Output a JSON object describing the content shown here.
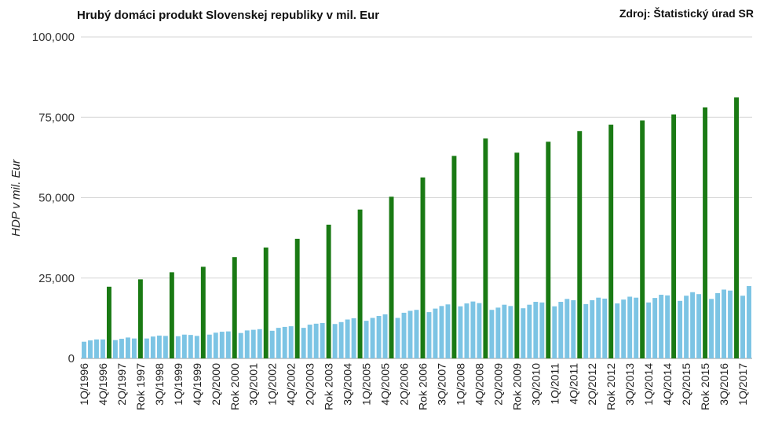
{
  "chart_data": {
    "type": "bar",
    "title": "Hrubý domáci produkt Slovenskej republiky v mil. Eur",
    "source": "Zdroj: Štatistický úrad SR",
    "ylabel": "HDP v mil. Eur",
    "xlabel": "",
    "ylim": [
      0,
      100000
    ],
    "yticks": [
      "0",
      "25,000",
      "50,000",
      "75,000",
      "100,000"
    ],
    "ytick_values": [
      0,
      25000,
      50000,
      75000,
      100000
    ],
    "grid": true,
    "legend": "none",
    "colors": {
      "quarter": "#7cc4e4",
      "year": "#1a7a14",
      "grid": "#d6d6d6"
    },
    "categories": [
      "1Q/1996",
      "2Q/1996",
      "3Q/1996",
      "4Q/1996",
      "Rok 1996",
      "1Q/1997",
      "2Q/1997",
      "3Q/1997",
      "4Q/1997",
      "Rok 1997",
      "1Q/1998",
      "2Q/1998",
      "3Q/1998",
      "4Q/1998",
      "Rok 1998",
      "1Q/1999",
      "2Q/1999",
      "3Q/1999",
      "4Q/1999",
      "Rok 1999",
      "1Q/2000",
      "2Q/2000",
      "3Q/2000",
      "4Q/2000",
      "Rok 2000",
      "1Q/2001",
      "2Q/2001",
      "3Q/2001",
      "4Q/2001",
      "Rok 2001",
      "1Q/2002",
      "2Q/2002",
      "3Q/2002",
      "4Q/2002",
      "Rok 2002",
      "1Q/2003",
      "2Q/2003",
      "3Q/2003",
      "4Q/2003",
      "Rok 2003",
      "1Q/2004",
      "2Q/2004",
      "3Q/2004",
      "4Q/2004",
      "Rok 2004",
      "1Q/2005",
      "2Q/2005",
      "3Q/2005",
      "4Q/2005",
      "Rok 2005",
      "1Q/2006",
      "2Q/2006",
      "3Q/2006",
      "4Q/2006",
      "Rok 2006",
      "1Q/2007",
      "2Q/2007",
      "3Q/2007",
      "4Q/2007",
      "Rok 2007",
      "1Q/2008",
      "2Q/2008",
      "3Q/2008",
      "4Q/2008",
      "Rok 2008",
      "1Q/2009",
      "2Q/2009",
      "3Q/2009",
      "4Q/2009",
      "Rok 2009",
      "1Q/2010",
      "2Q/2010",
      "3Q/2010",
      "4Q/2010",
      "Rok 2010",
      "1Q/2011",
      "2Q/2011",
      "3Q/2011",
      "4Q/2011",
      "Rok 2011",
      "1Q/2012",
      "2Q/2012",
      "3Q/2012",
      "4Q/2012",
      "Rok 2012",
      "1Q/2013",
      "2Q/2013",
      "3Q/2013",
      "4Q/2013",
      "Rok 2013",
      "1Q/2014",
      "2Q/2014",
      "3Q/2014",
      "4Q/2014",
      "Rok 2014",
      "1Q/2015",
      "2Q/2015",
      "3Q/2015",
      "4Q/2015",
      "Rok 2015",
      "1Q/2016",
      "2Q/2016",
      "3Q/2016",
      "4Q/2016",
      "Rok 2016",
      "1Q/2017",
      "2Q/2017"
    ],
    "x_tick_labels": [
      "1Q/1996",
      "4Q/1996",
      "2Q/1997",
      "Rok 1997",
      "3Q/1998",
      "1Q/1999",
      "4Q/1999",
      "2Q/2000",
      "Rok 2000",
      "3Q/2001",
      "1Q/2002",
      "4Q/2002",
      "2Q/2003",
      "Rok 2003",
      "3Q/2004",
      "1Q/2005",
      "4Q/2005",
      "2Q/2006",
      "Rok 2006",
      "3Q/2007",
      "1Q/2008",
      "4Q/2008",
      "2Q/2009",
      "Rok 2009",
      "3Q/2010",
      "1Q/2011",
      "4Q/2011",
      "2Q/2012",
      "Rok 2012",
      "3Q/2013",
      "1Q/2014",
      "4Q/2014",
      "2Q/2015",
      "Rok 2015",
      "3Q/2016",
      "1Q/2017"
    ],
    "values": [
      5200,
      5600,
      5900,
      5900,
      22300,
      5700,
      6100,
      6500,
      6200,
      24600,
      6200,
      6800,
      7100,
      7000,
      26800,
      6900,
      7400,
      7300,
      7000,
      28500,
      7400,
      8000,
      8300,
      8400,
      31500,
      7900,
      8700,
      8900,
      9100,
      34500,
      8600,
      9500,
      9800,
      10000,
      37200,
      9500,
      10500,
      10800,
      11000,
      41600,
      10700,
      11300,
      12100,
      12500,
      46300,
      11700,
      12600,
      13200,
      13700,
      50300,
      12600,
      14200,
      14800,
      15100,
      56300,
      14400,
      15500,
      16300,
      16800,
      63000,
      16200,
      17100,
      17700,
      17200,
      68400,
      15100,
      15800,
      16700,
      16300,
      64000,
      15600,
      16700,
      17600,
      17400,
      67400,
      16200,
      17600,
      18500,
      18100,
      70700,
      16900,
      18100,
      18900,
      18600,
      72700,
      17100,
      18300,
      19200,
      18900,
      74000,
      17400,
      18800,
      19800,
      19600,
      75900,
      17900,
      19500,
      20600,
      20000,
      78100,
      18500,
      20300,
      21400,
      21100,
      81200,
      19500,
      22500
    ]
  }
}
